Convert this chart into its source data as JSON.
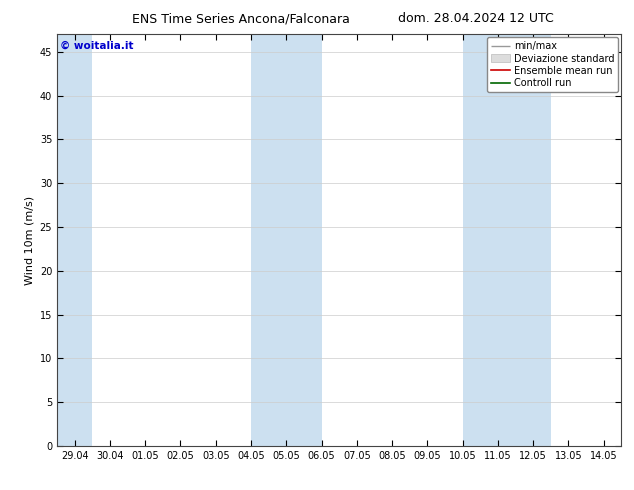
{
  "title_left": "ENS Time Series Ancona/Falconara",
  "title_right": "dom. 28.04.2024 12 UTC",
  "ylabel": "Wind 10m (m/s)",
  "ylim": [
    0,
    47
  ],
  "yticks": [
    0,
    5,
    10,
    15,
    20,
    25,
    30,
    35,
    40,
    45
  ],
  "xtick_labels": [
    "29.04",
    "30.04",
    "01.05",
    "02.05",
    "03.05",
    "04.05",
    "05.05",
    "06.05",
    "07.05",
    "08.05",
    "09.05",
    "10.05",
    "11.05",
    "12.05",
    "13.05",
    "14.05"
  ],
  "xtick_positions": [
    0,
    1,
    2,
    3,
    4,
    5,
    6,
    7,
    8,
    9,
    10,
    11,
    12,
    13,
    14,
    15
  ],
  "xlim_left": -0.5,
  "xlim_right": 15.5,
  "background_color": "#ffffff",
  "plot_bg_color": "#ffffff",
  "shaded_bands": [
    {
      "x_start": -0.5,
      "x_end": 0.5
    },
    {
      "x_start": 5.0,
      "x_end": 7.0
    },
    {
      "x_start": 11.0,
      "x_end": 13.5
    }
  ],
  "shaded_color": "#cce0f0",
  "watermark": "© woitalia.it",
  "watermark_color": "#0000cc",
  "title_fontsize": 9,
  "tick_fontsize": 7,
  "ylabel_fontsize": 8,
  "grid_color": "#cccccc",
  "grid_linewidth": 0.5,
  "spine_color": "#444444",
  "legend_fontsize": 7
}
